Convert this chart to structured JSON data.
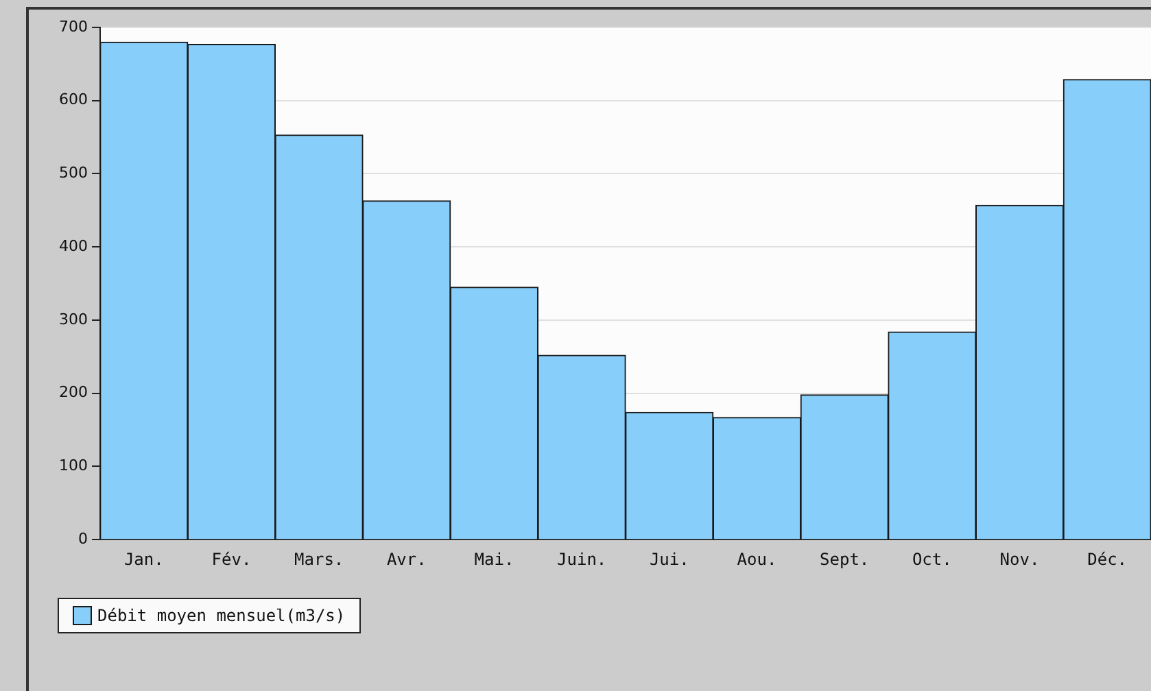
{
  "chart_data": {
    "type": "bar",
    "categories": [
      "Jan.",
      "Fév.",
      "Mars.",
      "Avr.",
      "Mai.",
      "Juin.",
      "Jui.",
      "Aou.",
      "Sept.",
      "Oct.",
      "Nov.",
      "Déc."
    ],
    "series": [
      {
        "name": "Débit moyen mensuel(m3/s)",
        "color": "#87cefa",
        "values": [
          680,
          677,
          553,
          463,
          345,
          252,
          174,
          167,
          198,
          284,
          457,
          629
        ]
      }
    ],
    "ylim": [
      0,
      700
    ],
    "yticks": [
      0,
      100,
      200,
      300,
      400,
      500,
      600,
      700
    ],
    "grid": "y",
    "legend": "bottom left"
  }
}
